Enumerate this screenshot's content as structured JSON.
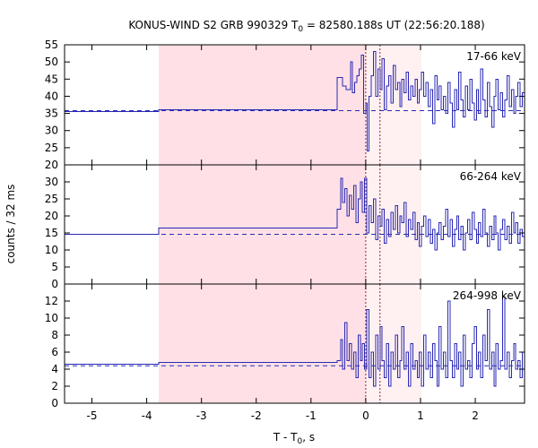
{
  "chart_data": {
    "type": "line",
    "title": {
      "prefix": "KONUS-WIND S2 GRB 990329 T",
      "sub": "0",
      "suffix": " = 82580.188s UT (22:56:20.188)"
    },
    "xlabel": {
      "prefix": "T - T",
      "sub": "0",
      "suffix": ", s"
    },
    "ylabel": "counts / 32 ms",
    "xlim": [
      -5.5,
      2.9
    ],
    "x_ticks": [
      -5,
      -4,
      -3,
      -2,
      -1,
      0,
      1,
      2
    ],
    "x_tick_labels": [
      "-5",
      "-4",
      "-3",
      "-2",
      "-1",
      "0",
      "1",
      "2"
    ],
    "shaded_intervals": [
      {
        "x0": -3.78,
        "x1": 0.0,
        "color": "#ffe0e6"
      },
      {
        "x0": 0.0,
        "x1": 1.02,
        "color": "#fff0f2"
      }
    ],
    "vertical_markers": [
      0.0,
      0.26
    ],
    "colors": {
      "series": "#2a2ab4",
      "marker": "#8b2d2d",
      "frame": "#000000"
    },
    "panels": [
      {
        "label": "17-66 keV",
        "ylim": [
          20,
          55
        ],
        "y_ticks": [
          20,
          25,
          30,
          35,
          40,
          45,
          50,
          55
        ],
        "y_tick_labels": [
          "20",
          "25",
          "30",
          "35",
          "40",
          "45",
          "50",
          "55"
        ],
        "background_level": 35.8,
        "steps": [
          [
            -5.5,
            35.5
          ],
          [
            -3.78,
            36.1
          ],
          [
            -0.52,
            45.5
          ],
          [
            -0.42,
            43.0
          ],
          [
            -0.36,
            42.0
          ],
          [
            -0.28,
            50.0
          ],
          [
            -0.24,
            41.0
          ],
          [
            -0.2,
            44.0
          ],
          [
            -0.16,
            46.0
          ],
          [
            -0.12,
            48.0
          ],
          [
            -0.08,
            52.0
          ],
          [
            -0.04,
            35.0
          ],
          [
            0.0,
            38.0
          ],
          [
            0.03,
            24.0
          ],
          [
            0.06,
            40.0
          ],
          [
            0.1,
            46.0
          ],
          [
            0.14,
            53.0
          ],
          [
            0.18,
            40.0
          ],
          [
            0.22,
            48.0
          ],
          [
            0.26,
            42.0
          ],
          [
            0.3,
            51.0
          ],
          [
            0.34,
            36.0
          ],
          [
            0.38,
            43.0
          ],
          [
            0.42,
            46.0
          ],
          [
            0.46,
            38.0
          ],
          [
            0.5,
            49.0
          ],
          [
            0.54,
            42.0
          ],
          [
            0.58,
            44.0
          ],
          [
            0.62,
            37.0
          ],
          [
            0.66,
            45.0
          ],
          [
            0.7,
            41.0
          ],
          [
            0.74,
            47.0
          ],
          [
            0.78,
            39.0
          ],
          [
            0.82,
            43.0
          ],
          [
            0.86,
            40.0
          ],
          [
            0.9,
            45.0
          ],
          [
            0.94,
            38.0
          ],
          [
            0.98,
            42.0
          ],
          [
            1.02,
            47.0
          ],
          [
            1.06,
            40.0
          ],
          [
            1.1,
            44.0
          ],
          [
            1.14,
            37.0
          ],
          [
            1.18,
            42.0
          ],
          [
            1.22,
            32.0
          ],
          [
            1.26,
            46.0
          ],
          [
            1.3,
            39.0
          ],
          [
            1.34,
            43.0
          ],
          [
            1.38,
            36.0
          ],
          [
            1.42,
            40.0
          ],
          [
            1.46,
            35.0
          ],
          [
            1.5,
            44.0
          ],
          [
            1.54,
            38.0
          ],
          [
            1.58,
            31.0
          ],
          [
            1.62,
            42.0
          ],
          [
            1.66,
            36.0
          ],
          [
            1.7,
            47.0
          ],
          [
            1.74,
            39.0
          ],
          [
            1.78,
            34.0
          ],
          [
            1.82,
            43.0
          ],
          [
            1.86,
            36.0
          ],
          [
            1.9,
            45.0
          ],
          [
            1.94,
            38.0
          ],
          [
            1.98,
            33.0
          ],
          [
            2.02,
            42.0
          ],
          [
            2.06,
            35.0
          ],
          [
            2.1,
            48.0
          ],
          [
            2.14,
            39.0
          ],
          [
            2.18,
            34.0
          ],
          [
            2.22,
            44.0
          ],
          [
            2.26,
            37.0
          ],
          [
            2.3,
            31.0
          ],
          [
            2.34,
            40.0
          ],
          [
            2.38,
            45.0
          ],
          [
            2.42,
            36.0
          ],
          [
            2.46,
            41.0
          ],
          [
            2.5,
            34.0
          ],
          [
            2.54,
            39.0
          ],
          [
            2.58,
            46.0
          ],
          [
            2.62,
            37.0
          ],
          [
            2.66,
            42.0
          ],
          [
            2.7,
            35.0
          ],
          [
            2.74,
            40.0
          ],
          [
            2.78,
            44.0
          ],
          [
            2.82,
            37.0
          ],
          [
            2.86,
            41.0
          ]
        ]
      },
      {
        "label": "66-264 keV",
        "ylim": [
          0,
          35
        ],
        "y_ticks": [
          0,
          5,
          10,
          15,
          20,
          25,
          30
        ],
        "y_tick_labels": [
          "0",
          "5",
          "10",
          "15",
          "20",
          "25",
          "30"
        ],
        "background_level": 14.6,
        "steps": [
          [
            -5.5,
            14.6
          ],
          [
            -3.78,
            16.5
          ],
          [
            -0.52,
            22.0
          ],
          [
            -0.46,
            31.0
          ],
          [
            -0.42,
            24.0
          ],
          [
            -0.38,
            28.0
          ],
          [
            -0.34,
            20.0
          ],
          [
            -0.3,
            26.0
          ],
          [
            -0.26,
            22.0
          ],
          [
            -0.22,
            29.0
          ],
          [
            -0.18,
            18.0
          ],
          [
            -0.14,
            25.0
          ],
          [
            -0.1,
            30.0
          ],
          [
            -0.06,
            21.0
          ],
          [
            -0.02,
            31.0
          ],
          [
            0.02,
            15.0
          ],
          [
            0.06,
            23.0
          ],
          [
            0.1,
            18.0
          ],
          [
            0.14,
            25.0
          ],
          [
            0.18,
            13.0
          ],
          [
            0.22,
            20.0
          ],
          [
            0.26,
            17.0
          ],
          [
            0.3,
            22.0
          ],
          [
            0.34,
            12.0
          ],
          [
            0.38,
            19.0
          ],
          [
            0.42,
            14.0
          ],
          [
            0.46,
            21.0
          ],
          [
            0.5,
            16.0
          ],
          [
            0.54,
            23.0
          ],
          [
            0.58,
            15.0
          ],
          [
            0.62,
            20.0
          ],
          [
            0.66,
            18.0
          ],
          [
            0.7,
            24.0
          ],
          [
            0.74,
            14.0
          ],
          [
            0.78,
            19.0
          ],
          [
            0.82,
            16.0
          ],
          [
            0.86,
            21.0
          ],
          [
            0.9,
            13.0
          ],
          [
            0.94,
            18.0
          ],
          [
            0.98,
            11.0
          ],
          [
            1.02,
            17.0
          ],
          [
            1.06,
            20.0
          ],
          [
            1.1,
            14.0
          ],
          [
            1.14,
            19.0
          ],
          [
            1.18,
            12.0
          ],
          [
            1.22,
            16.0
          ],
          [
            1.26,
            10.0
          ],
          [
            1.3,
            15.0
          ],
          [
            1.34,
            18.0
          ],
          [
            1.38,
            13.0
          ],
          [
            1.42,
            17.0
          ],
          [
            1.46,
            22.0
          ],
          [
            1.5,
            14.0
          ],
          [
            1.54,
            19.0
          ],
          [
            1.58,
            11.0
          ],
          [
            1.62,
            16.0
          ],
          [
            1.66,
            20.0
          ],
          [
            1.7,
            13.0
          ],
          [
            1.74,
            17.0
          ],
          [
            1.78,
            10.0
          ],
          [
            1.82,
            15.0
          ],
          [
            1.86,
            19.0
          ],
          [
            1.9,
            13.0
          ],
          [
            1.94,
            21.0
          ],
          [
            1.98,
            16.0
          ],
          [
            2.02,
            12.0
          ],
          [
            2.06,
            18.0
          ],
          [
            2.1,
            14.0
          ],
          [
            2.14,
            22.0
          ],
          [
            2.18,
            15.0
          ],
          [
            2.22,
            11.0
          ],
          [
            2.26,
            17.0
          ],
          [
            2.3,
            13.0
          ],
          [
            2.34,
            20.0
          ],
          [
            2.38,
            15.0
          ],
          [
            2.42,
            10.0
          ],
          [
            2.46,
            16.0
          ],
          [
            2.5,
            19.0
          ],
          [
            2.54,
            13.0
          ],
          [
            2.58,
            17.0
          ],
          [
            2.62,
            12.0
          ],
          [
            2.66,
            21.0
          ],
          [
            2.7,
            15.0
          ],
          [
            2.74,
            18.0
          ],
          [
            2.78,
            12.0
          ],
          [
            2.82,
            16.0
          ],
          [
            2.86,
            14.0
          ]
        ]
      },
      {
        "label": "264-998 keV",
        "ylim": [
          0,
          14
        ],
        "y_ticks": [
          0,
          2,
          4,
          6,
          8,
          10,
          12
        ],
        "y_tick_labels": [
          "0",
          "2",
          "4",
          "6",
          "8",
          "10",
          "12"
        ],
        "background_level": 4.4,
        "steps": [
          [
            -5.5,
            4.6
          ],
          [
            -3.78,
            4.8
          ],
          [
            -0.52,
            5.0
          ],
          [
            -0.46,
            7.5
          ],
          [
            -0.42,
            4.0
          ],
          [
            -0.38,
            9.5
          ],
          [
            -0.34,
            5.0
          ],
          [
            -0.3,
            7.0
          ],
          [
            -0.26,
            4.0
          ],
          [
            -0.22,
            6.0
          ],
          [
            -0.18,
            3.0
          ],
          [
            -0.14,
            8.0
          ],
          [
            -0.1,
            5.0
          ],
          [
            -0.06,
            7.0
          ],
          [
            -0.02,
            4.0
          ],
          [
            0.02,
            11.0
          ],
          [
            0.06,
            3.0
          ],
          [
            0.1,
            6.0
          ],
          [
            0.14,
            2.0
          ],
          [
            0.18,
            8.0
          ],
          [
            0.22,
            4.0
          ],
          [
            0.26,
            9.0
          ],
          [
            0.3,
            5.0
          ],
          [
            0.34,
            3.0
          ],
          [
            0.38,
            7.0
          ],
          [
            0.42,
            2.0
          ],
          [
            0.46,
            6.0
          ],
          [
            0.5,
            4.0
          ],
          [
            0.54,
            8.0
          ],
          [
            0.58,
            3.0
          ],
          [
            0.62,
            5.0
          ],
          [
            0.66,
            9.0
          ],
          [
            0.7,
            4.0
          ],
          [
            0.74,
            6.0
          ],
          [
            0.78,
            2.0
          ],
          [
            0.82,
            7.0
          ],
          [
            0.86,
            4.0
          ],
          [
            0.9,
            5.0
          ],
          [
            0.94,
            3.0
          ],
          [
            0.98,
            6.0
          ],
          [
            1.02,
            2.0
          ],
          [
            1.06,
            8.0
          ],
          [
            1.1,
            4.0
          ],
          [
            1.14,
            6.0
          ],
          [
            1.18,
            3.0
          ],
          [
            1.22,
            7.0
          ],
          [
            1.26,
            5.0
          ],
          [
            1.3,
            2.0
          ],
          [
            1.34,
            9.0
          ],
          [
            1.38,
            4.0
          ],
          [
            1.42,
            6.0
          ],
          [
            1.46,
            3.0
          ],
          [
            1.5,
            12.0
          ],
          [
            1.54,
            5.0
          ],
          [
            1.58,
            3.0
          ],
          [
            1.62,
            7.0
          ],
          [
            1.66,
            4.0
          ],
          [
            1.7,
            6.0
          ],
          [
            1.74,
            2.0
          ],
          [
            1.78,
            8.0
          ],
          [
            1.82,
            4.0
          ],
          [
            1.86,
            5.0
          ],
          [
            1.9,
            3.0
          ],
          [
            1.94,
            7.0
          ],
          [
            1.98,
            9.0
          ],
          [
            2.02,
            4.0
          ],
          [
            2.06,
            6.0
          ],
          [
            2.1,
            3.0
          ],
          [
            2.14,
            8.0
          ],
          [
            2.18,
            5.0
          ],
          [
            2.22,
            11.0
          ],
          [
            2.26,
            4.0
          ],
          [
            2.3,
            6.0
          ],
          [
            2.34,
            2.0
          ],
          [
            2.38,
            7.0
          ],
          [
            2.42,
            4.0
          ],
          [
            2.46,
            5.0
          ],
          [
            2.5,
            12.5
          ],
          [
            2.54,
            4.0
          ],
          [
            2.58,
            6.0
          ],
          [
            2.62,
            3.0
          ],
          [
            2.66,
            5.0
          ],
          [
            2.7,
            7.0
          ],
          [
            2.74,
            4.0
          ],
          [
            2.78,
            5.0
          ],
          [
            2.82,
            3.0
          ],
          [
            2.86,
            6.0
          ]
        ]
      }
    ]
  }
}
